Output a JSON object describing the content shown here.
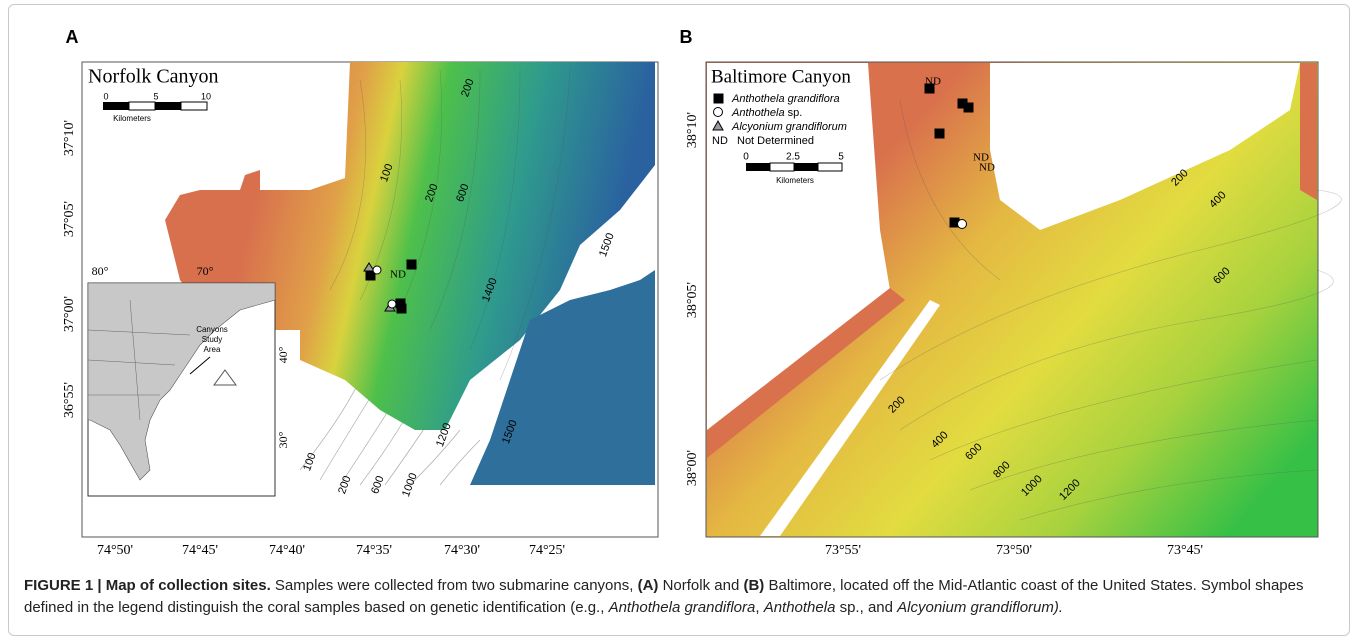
{
  "panels": [
    {
      "letter": "A",
      "title": "Norfolk Canyon",
      "scale": {
        "ticks": [
          "0",
          "5",
          "10"
        ],
        "unit": "Kilometers"
      },
      "lat_labels": [
        "37°10'",
        "37°05'",
        "37°00'",
        "36°55'"
      ],
      "lon_labels": [
        "74°50'",
        "74°45'",
        "74°40'",
        "74°35'",
        "74°30'",
        "74°25'"
      ],
      "contours": [
        "200",
        "100",
        "200",
        "600",
        "1500",
        "1400",
        "100",
        "200",
        "600",
        "1000",
        "1200",
        "1500"
      ],
      "site_labels": [
        "ND"
      ],
      "inset": {
        "lon_labels": [
          "80°",
          "70°"
        ],
        "lat_labels": [
          "40°",
          "30°"
        ],
        "label": [
          "Canyons",
          "Study",
          "Area"
        ]
      }
    },
    {
      "letter": "B",
      "title": "Baltimore Canyon",
      "legend": {
        "square": "Anthothela grandiflora",
        "circle_genus": "Anthothela",
        "circle_rest": "sp.",
        "triangle": "Alcyonium grandiflorum",
        "nd_code": "ND",
        "nd_text": "Not Determined"
      },
      "scale": {
        "ticks": [
          "0",
          "2.5",
          "5"
        ],
        "unit": "Kilometers"
      },
      "lat_labels": [
        "38°10'",
        "38°05'",
        "38°00'"
      ],
      "lon_labels": [
        "73°55'",
        "73°50'",
        "73°45'"
      ],
      "contours": [
        "200",
        "400",
        "600",
        "200",
        "400",
        "600",
        "800",
        "1000",
        "1200"
      ],
      "site_labels": [
        "ND",
        "ND",
        "ND"
      ]
    }
  ],
  "caption": {
    "heading": "FIGURE 1 | Map of collection sites.",
    "t1": "Samples were collected from two submarine canyons,",
    "a": "(A)",
    "t2": "Norfolk and",
    "b": "(B)",
    "t3": "Baltimore, located off the Mid-Atlantic coast of the United States. Symbol shapes defined in the legend distinguish the coral samples based on genetic identification (e.g.,",
    "i1": "Anthothela grandiflora",
    "t4": ",",
    "i2": "Anthothela",
    "t5": "sp., and",
    "i3": "Alcyonium grandiflorum)."
  }
}
